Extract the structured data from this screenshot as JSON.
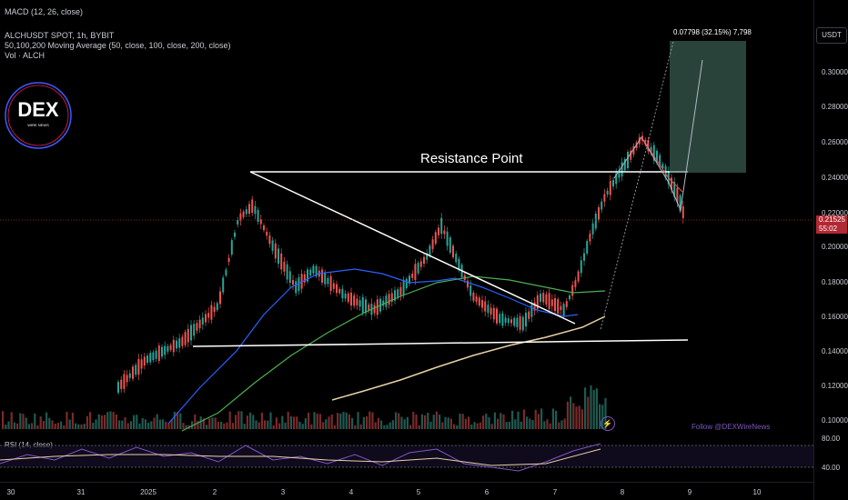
{
  "header": {
    "macd_label": "MACD (12, 26, close)"
  },
  "legend": {
    "symbol": "ALCHUSDT SPOT, 1h, BYBIT",
    "ma": "50,100,200 Moving Average (50, close, 100, close, 200, close)",
    "vol": "Vol · ALCH"
  },
  "price_scale": {
    "unit": "USDT",
    "labels": [
      "0.30000",
      "0.28000",
      "0.26000",
      "0.24000",
      "0.22000",
      "0.20000",
      "0.18000",
      "0.16000",
      "0.14000",
      "0.12000",
      "0.10000"
    ],
    "current_price": "0.21525",
    "countdown": "55:02"
  },
  "rsi": {
    "label": "RSI (14, close)",
    "levels": [
      "80.00",
      "40.00"
    ]
  },
  "time_axis": {
    "labels": [
      "30",
      "31",
      "2025",
      "2",
      "3",
      "4",
      "5",
      "6",
      "7",
      "8",
      "9",
      "10"
    ]
  },
  "annotations": {
    "resistance": "Resistance Point",
    "measure": "0.07798 (32.15%) 7,798",
    "follow": "Follow @DEXWireNews"
  },
  "logo": {
    "text": "DEX",
    "subtext": "WIRE NEWS"
  },
  "colors": {
    "up": "#26a69a",
    "down": "#ef5350",
    "ma50": "#4caf50",
    "ma100": "#2962ff",
    "ma200": "#e8d2a6",
    "rsi": "#7e57c2",
    "price_line": "#b22833"
  }
}
